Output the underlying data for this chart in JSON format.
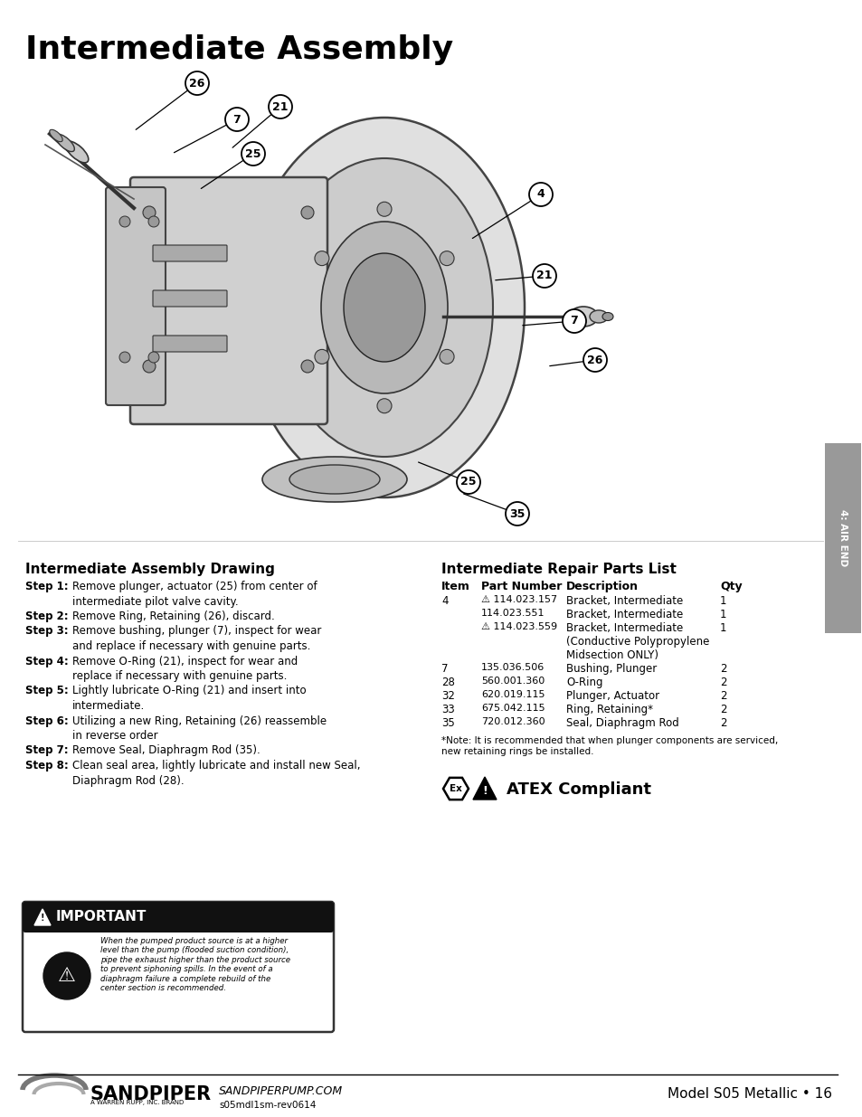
{
  "title": "Intermediate Assembly",
  "page_bg": "#ffffff",
  "tab_color": "#999999",
  "tab_text": "4: AIR END",
  "drawing_title": "Intermediate Assembly Drawing",
  "parts_title": "Intermediate Repair Parts List",
  "parts_headers": [
    "Item",
    "Part Number",
    "Description",
    "Qty"
  ],
  "parts_rows": [
    [
      "4",
      "⚠ 114.023.157",
      "Bracket, Intermediate",
      "1"
    ],
    [
      "",
      "114.023.551",
      "Bracket, Intermediate",
      "1"
    ],
    [
      "",
      "⚠ 114.023.559",
      "Bracket, Intermediate",
      "1"
    ],
    [
      "",
      "",
      "(Conductive Polypropylene",
      ""
    ],
    [
      "",
      "",
      "Midsection ONLY)",
      ""
    ],
    [
      "7",
      "135.036.506",
      "Bushing, Plunger",
      "2"
    ],
    [
      "28",
      "560.001.360",
      "O-Ring",
      "2"
    ],
    [
      "32",
      "620.019.115",
      "Plunger, Actuator",
      "2"
    ],
    [
      "33",
      "675.042.115",
      "Ring, Retaining*",
      "2"
    ],
    [
      "35",
      "720.012.360",
      "Seal, Diaphragm Rod",
      "2"
    ]
  ],
  "parts_note": "*Note: It is recommended that when plunger components are serviced,\nnew retaining rings be installed.",
  "important_title": "IMPORTANT",
  "important_text": "When the pumped product source is at a higher\nlevel than the pump (flooded suction condition),\npipe the exhaust higher than the product source\nto prevent siphoning spills. In the event of a\ndiaphragm failure a complete rebuild of the\ncenter section is recommended.",
  "atex_text": "ATEX Compliant",
  "footer_brand": "SANDPIPER",
  "footer_brand_sub": "A WARREN RUPP, INC. BRAND",
  "footer_url": "SANDPIPERPUMP.COM",
  "footer_doc": "s05mdl1sm-rev0614",
  "footer_model": "Model S05 Metallic • 16"
}
